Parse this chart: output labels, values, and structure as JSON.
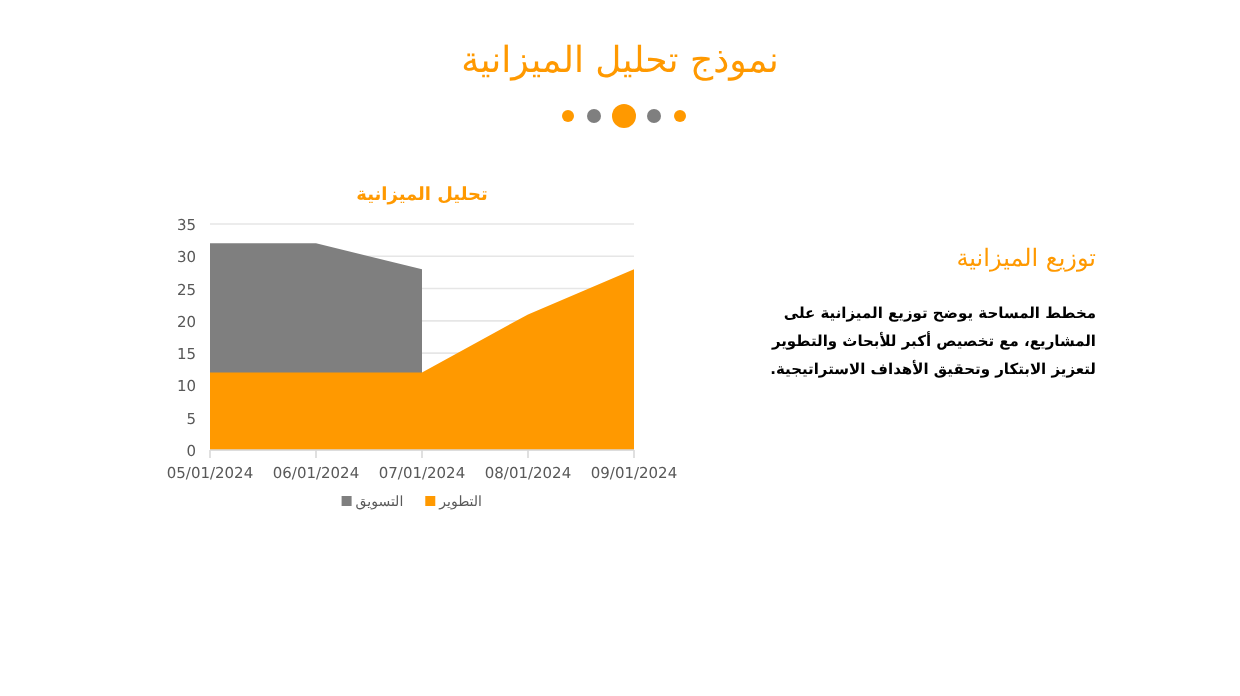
{
  "chart_data": {
    "type": "area",
    "title": "نموذج تحليل الميزانية",
    "subtitle": "تحليل الميزانية",
    "categories": [
      "05/01/2024",
      "06/01/2024",
      "07/01/2024",
      "08/01/2024",
      "09/01/2024"
    ],
    "series": [
      {
        "name": "التسويق",
        "color": "#7f7f7f",
        "values": [
          32,
          32,
          28,
          null,
          null
        ]
      },
      {
        "name": "التطوير",
        "color": "#ff9900",
        "values": [
          12,
          12,
          12,
          21,
          28
        ]
      }
    ],
    "ylim": [
      0,
      35
    ],
    "yticks": [
      0,
      5,
      10,
      15,
      20,
      25,
      30,
      35
    ],
    "grid": "y",
    "legend": "bottom",
    "annotations": [
      "توزيع الميزانية",
      "مخطط المساحة يوضح توزيع الميزانية على المشاريع، مع تخصيص أكبر للأبحاث والتطوير لتعزيز الابتكار وتحقيق الأهداف الاستراتيجية."
    ]
  }
}
